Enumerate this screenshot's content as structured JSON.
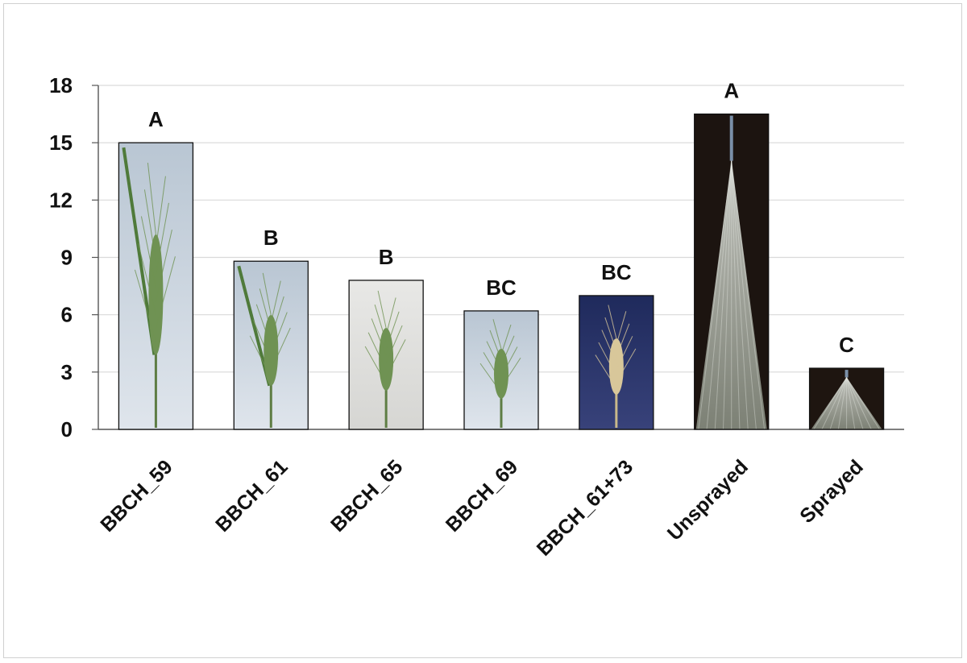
{
  "chart_data": {
    "type": "bar",
    "title": "",
    "xlabel": "",
    "ylabel": "",
    "ylim": [
      0,
      18
    ],
    "yticks": [
      0,
      3,
      6,
      9,
      12,
      15,
      18
    ],
    "grid": true,
    "legend": "none",
    "categories": [
      "BBCH_59",
      "BBCH_61",
      "BBCH_65",
      "BBCH_69",
      "BBCH_61+73",
      "Unsprayed",
      "Sprayed"
    ],
    "values": [
      15.0,
      8.8,
      7.8,
      6.2,
      7.0,
      16.5,
      3.2
    ],
    "significance_letters": [
      "A",
      "B",
      "B",
      "BC",
      "BC",
      "A",
      "C"
    ],
    "bar_images": [
      "wheat-spike-photo",
      "wheat-spike-photo",
      "wheat-spike-photo",
      "wheat-spike-photo",
      "wheat-spike-photo",
      "spray-cone-photo",
      "spray-cone-photo"
    ],
    "bar_colors": [
      "#c8d2dc",
      "#c9d3dd",
      "#e2e2e0",
      "#c3d0dc",
      "#2c3466",
      "#1c1410",
      "#1e1510"
    ]
  }
}
